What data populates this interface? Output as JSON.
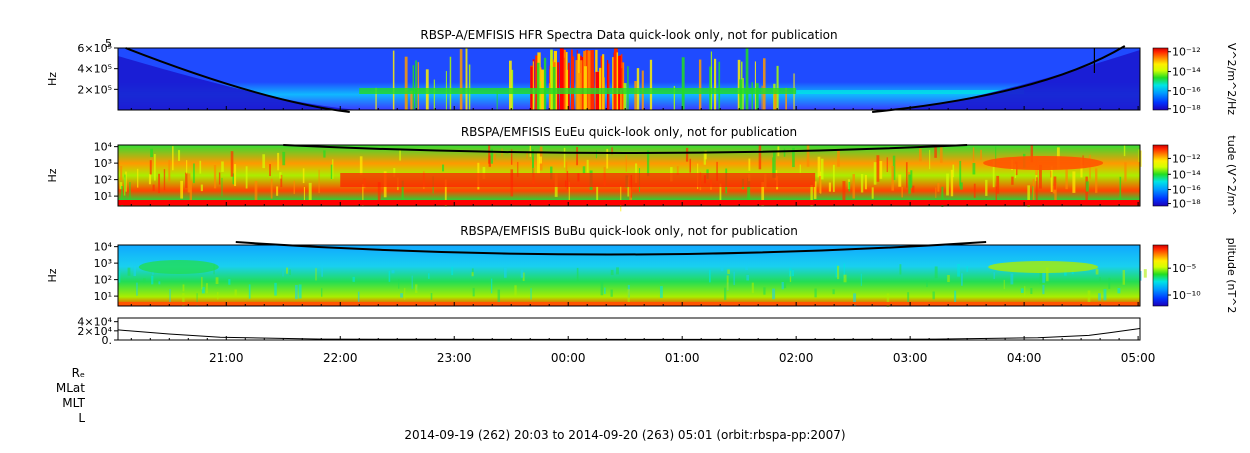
{
  "chart_data": [
    {
      "type": "heatmap",
      "id": "hfr",
      "title": "RBSP-A/EMFISIS  HFR Spectra Data quick-look only, not for publication",
      "ylabel": "Hz",
      "yticks": [
        {
          "label": "6×10⁵",
          "v": 6
        },
        {
          "label": "4×10⁵",
          "v": 4
        },
        {
          "label": "2×10⁵",
          "v": 2
        }
      ],
      "ytop_label": "5",
      "ylim_linear": [
        0,
        6
      ],
      "colorbar": {
        "label": "V^2/m^2/Hz",
        "ticks": [
          {
            "label": "10⁻¹²",
            "f": 0.06
          },
          {
            "label": "10⁻¹⁴",
            "f": 0.38
          },
          {
            "label": "10⁻¹⁶",
            "f": 0.69
          },
          {
            "label": "10⁻¹⁸",
            "f": 0.98
          }
        ]
      },
      "background": "#1f4bff"
    },
    {
      "type": "heatmap",
      "id": "eueu",
      "title": "RBSPA/EMFISIS  EuEu quick-look only, not for publication",
      "ylabel": "Hz",
      "yticks": [
        {
          "label": "10⁴",
          "v": 4
        },
        {
          "label": "10³",
          "v": 3
        },
        {
          "label": "10²",
          "v": 2
        },
        {
          "label": "10¹",
          "v": 1
        }
      ],
      "ylim_log10": [
        0.4,
        4.1
      ],
      "colorbar": {
        "label": "tude (V^2/m^",
        "ticks": [
          {
            "label": "10⁻¹²",
            "f": 0.22
          },
          {
            "label": "10⁻¹⁴",
            "f": 0.48
          },
          {
            "label": "10⁻¹⁶",
            "f": 0.73
          },
          {
            "label": "10⁻¹⁸",
            "f": 0.96
          }
        ]
      },
      "background": "#22dd22"
    },
    {
      "type": "heatmap",
      "id": "bubu",
      "title": "RBSPA/EMFISIS  BuBu quick-look only, not for publication",
      "ylabel": "Hz",
      "yticks": [
        {
          "label": "10⁴",
          "v": 4
        },
        {
          "label": "10³",
          "v": 3
        },
        {
          "label": "10²",
          "v": 2
        },
        {
          "label": "10¹",
          "v": 1
        }
      ],
      "ylim_log10": [
        0.4,
        4.1
      ],
      "colorbar": {
        "label": "plitude (nT^2",
        "ticks": [
          {
            "label": "10⁻⁵",
            "f": 0.38
          },
          {
            "label": "10⁻¹⁰",
            "f": 0.82
          }
        ]
      },
      "background": "#19c7ff"
    },
    {
      "type": "line",
      "id": "mag",
      "title": "",
      "yticks": [
        {
          "label": "4×10⁴",
          "v": 4
        },
        {
          "label": "2×10⁴",
          "v": 2
        },
        {
          "label": "0.",
          "v": 0
        }
      ],
      "ylim": [
        0,
        4.8
      ],
      "x": [
        0,
        0.05,
        0.1,
        0.2,
        0.3,
        0.4,
        0.5,
        0.6,
        0.7,
        0.8,
        0.9,
        0.95,
        0.97,
        1.0
      ],
      "values": [
        2.2,
        1.3,
        0.6,
        0.2,
        0.15,
        0.12,
        0.12,
        0.12,
        0.14,
        0.2,
        0.5,
        1.0,
        1.6,
        2.5
      ]
    }
  ],
  "xaxis": {
    "range_min": [
      1203,
      1741
    ],
    "ticks": [
      {
        "label": "21:00",
        "min": 1260
      },
      {
        "label": "22:00",
        "min": 1320
      },
      {
        "label": "23:00",
        "min": 1380
      },
      {
        "label": "00:00",
        "min": 1440
      },
      {
        "label": "01:00",
        "min": 1500
      },
      {
        "label": "02:00",
        "min": 1560
      },
      {
        "label": "03:00",
        "min": 1620
      },
      {
        "label": "04:00",
        "min": 1680
      },
      {
        "label": "05:00",
        "min": 1740
      }
    ]
  },
  "ephemeris_labels": [
    "Rₑ",
    "MLat",
    "MLT",
    "L"
  ],
  "footer": "2014-09-19 (262) 20:03 to 2014-09-20 (263) 05:01 (orbit:rbspa-pp:2007)",
  "colors": {
    "jet": [
      "#1d00b8",
      "#0033ff",
      "#00a0ff",
      "#00e5e5",
      "#22dd22",
      "#d4ff00",
      "#ffee00",
      "#ff8800",
      "#ff2200",
      "#cc0000"
    ]
  }
}
